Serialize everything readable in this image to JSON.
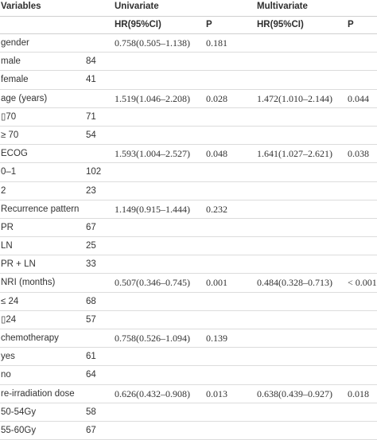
{
  "header": {
    "variables": "Variables",
    "univariate": "Univariate",
    "multivariate": "Multivariate",
    "hr_uni": "HR(95%CI)",
    "p_uni": "P",
    "hr_multi": "HR(95%CI)",
    "p_multi": "P"
  },
  "rows": [
    {
      "variable": "gender",
      "n": "",
      "uni_hr": "0.758(0.505–1.138)",
      "uni_p": "0.181",
      "multi_hr": "",
      "multi_p": ""
    },
    {
      "variable": "male",
      "n": "84",
      "uni_hr": "",
      "uni_p": "",
      "multi_hr": "",
      "multi_p": ""
    },
    {
      "variable": "female",
      "n": "41",
      "uni_hr": "",
      "uni_p": "",
      "multi_hr": "",
      "multi_p": ""
    },
    {
      "variable": "age (years)",
      "n": "",
      "uni_hr": "1.519(1.046–2.208)",
      "uni_p": "0.028",
      "multi_hr": "1.472(1.010–2.144)",
      "multi_p": "0.044"
    },
    {
      "variable": "▯70",
      "n": "71",
      "uni_hr": "",
      "uni_p": "",
      "multi_hr": "",
      "multi_p": ""
    },
    {
      "variable": "≥ 70",
      "n": "54",
      "uni_hr": "",
      "uni_p": "",
      "multi_hr": "",
      "multi_p": ""
    },
    {
      "variable": "ECOG",
      "n": "",
      "uni_hr": "1.593(1.004–2.527)",
      "uni_p": "0.048",
      "multi_hr": "1.641(1.027–2.621)",
      "multi_p": "0.038"
    },
    {
      "variable": "0–1",
      "n": "102",
      "uni_hr": "",
      "uni_p": "",
      "multi_hr": "",
      "multi_p": ""
    },
    {
      "variable": "2",
      "n": "23",
      "uni_hr": "",
      "uni_p": "",
      "multi_hr": "",
      "multi_p": ""
    },
    {
      "variable": "Recurrence pattern",
      "n": "",
      "uni_hr": "1.149(0.915–1.444)",
      "uni_p": "0.232",
      "multi_hr": "",
      "multi_p": ""
    },
    {
      "variable": "PR",
      "n": "67",
      "uni_hr": "",
      "uni_p": "",
      "multi_hr": "",
      "multi_p": ""
    },
    {
      "variable": "LN",
      "n": "25",
      "uni_hr": "",
      "uni_p": "",
      "multi_hr": "",
      "multi_p": ""
    },
    {
      "variable": "PR + LN",
      "n": "33",
      "uni_hr": "",
      "uni_p": "",
      "multi_hr": "",
      "multi_p": ""
    },
    {
      "variable": "NRI (months)",
      "n": "",
      "uni_hr": "0.507(0.346–0.745)",
      "uni_p": "0.001",
      "multi_hr": "0.484(0.328–0.713)",
      "multi_p": "< 0.001"
    },
    {
      "variable": "≤ 24",
      "n": "68",
      "uni_hr": "",
      "uni_p": "",
      "multi_hr": "",
      "multi_p": ""
    },
    {
      "variable": "▯24",
      "n": "57",
      "uni_hr": "",
      "uni_p": "",
      "multi_hr": "",
      "multi_p": ""
    },
    {
      "variable": "chemotherapy",
      "n": "",
      "uni_hr": "0.758(0.526–1.094)",
      "uni_p": "0.139",
      "multi_hr": "",
      "multi_p": ""
    },
    {
      "variable": "yes",
      "n": "61",
      "uni_hr": "",
      "uni_p": "",
      "multi_hr": "",
      "multi_p": ""
    },
    {
      "variable": "no",
      "n": "64",
      "uni_hr": "",
      "uni_p": "",
      "multi_hr": "",
      "multi_p": ""
    },
    {
      "variable": "re-irradiation dose",
      "n": "",
      "uni_hr": "0.626(0.432–0.908)",
      "uni_p": "0.013",
      "multi_hr": "0.638(0.439–0.927)",
      "multi_p": "0.018"
    },
    {
      "variable": "50-54Gy",
      "n": "58",
      "uni_hr": "",
      "uni_p": "",
      "multi_hr": "",
      "multi_p": ""
    },
    {
      "variable": "55-60Gy",
      "n": "67",
      "uni_hr": "",
      "uni_p": "",
      "multi_hr": "",
      "multi_p": ""
    }
  ]
}
